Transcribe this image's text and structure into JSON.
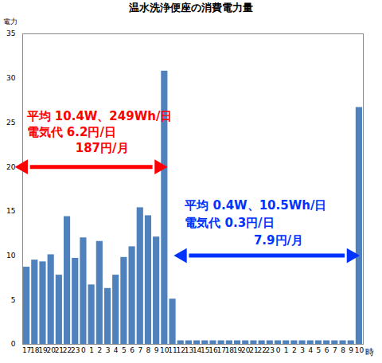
{
  "chart_data": {
    "type": "bar",
    "title": "温水洗浄便座の消費電力量",
    "y_label": "電力",
    "x_label": "時",
    "categories": [
      "17",
      "18",
      "19",
      "20",
      "21",
      "22",
      "23",
      "0",
      "1",
      "2",
      "3",
      "4",
      "5",
      "6",
      "7",
      "8",
      "9",
      "10",
      "11",
      "12",
      "13",
      "14",
      "15",
      "16",
      "17",
      "18",
      "19",
      "20",
      "21",
      "22",
      "23",
      "0",
      "1",
      "2",
      "3",
      "4",
      "5",
      "6",
      "7",
      "8",
      "9",
      "10"
    ],
    "values": [
      8.7,
      9.5,
      9.3,
      10.1,
      7.8,
      14.4,
      9.7,
      12.0,
      6.7,
      11.6,
      6.3,
      7.8,
      9.8,
      11.0,
      15.4,
      14.5,
      12.1,
      30.8,
      5.1,
      0.4,
      0.4,
      0.4,
      0.4,
      0.4,
      0.4,
      0.4,
      0.4,
      0.4,
      0.4,
      0.4,
      0.4,
      0.4,
      0.4,
      0.4,
      0.4,
      0.4,
      0.4,
      0.4,
      0.4,
      0.4,
      0.4,
      26.7
    ],
    "color": "#4f81bd",
    "ylim": [
      0,
      35
    ],
    "yticks": [
      0,
      5,
      10,
      15,
      20,
      25,
      30,
      35
    ],
    "grid": false,
    "annotations": [
      {
        "color": "#ff0000",
        "lines": [
          {
            "text": "平均 10.4W、249Wh/日",
            "x": 0,
            "y": 25.7
          },
          {
            "text": "電気代 6.2円/日",
            "x": 0,
            "y": 23.9
          },
          {
            "text": "187円/月",
            "x": 6,
            "y": 22.1
          }
        ],
        "arrow_from": -0.4,
        "arrow_to": 16.3,
        "arrow_y": 20
      },
      {
        "color": "#0033ff",
        "lines": [
          {
            "text": "平均 0.4W、10.5Wh/日",
            "x": 19.5,
            "y": 15.6
          },
          {
            "text": "電気代 0.3円/日",
            "x": 19.5,
            "y": 13.7
          },
          {
            "text": "7.9円/月",
            "x": 28,
            "y": 11.7
          }
        ],
        "arrow_from": 19.2,
        "arrow_to": 40,
        "arrow_y": 10
      }
    ]
  }
}
